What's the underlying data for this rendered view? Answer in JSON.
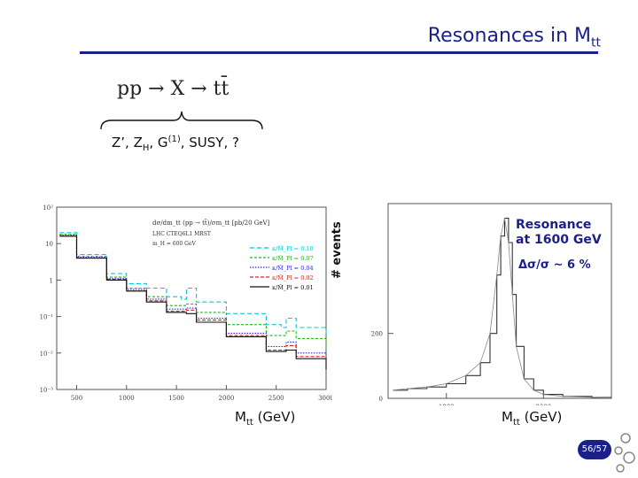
{
  "slide": {
    "title_main": "Resonances in M",
    "title_sub": "tt",
    "equation": "pp → X → tt̄",
    "candidates": {
      "text1": "Z’, Z",
      "sub1": "H",
      "text2": ", G",
      "sup1": "(1)",
      "text3": ", SUSY, ?"
    },
    "resonance_line1": "Resonance",
    "resonance_line2": "at 1600 GeV",
    "resonance_width": "Δσ/σ ~ 6 %",
    "page_number": "56/57",
    "accent_color": "#1a1f8a"
  },
  "chart_data": [
    {
      "type": "line",
      "xlabel_main": "M",
      "xlabel_sub": "tt",
      "xlabel_unit": "(GeV)",
      "y_scale": "log",
      "xlim": [
        300,
        3000
      ],
      "ylim": [
        0.001,
        100
      ],
      "x_ticks": [
        "500",
        "1000",
        "1500",
        "2000",
        "2500",
        "3000"
      ],
      "y_ticks": [
        "10²",
        "10",
        "1",
        "10⁻¹",
        "10⁻²",
        "10⁻³"
      ],
      "header": "dσ/dm_tt (pp → tt̄)/σm_tt   [pb/20 GeV]",
      "header2": "LHC CTEQ6L1 MRST",
      "header3": "m_H = 600 GeV",
      "series": [
        {
          "name": "κ/M̄_Pl = 0.10",
          "color": "#00c8d8",
          "values": [
            [
              330,
              20
            ],
            [
              500,
              5
            ],
            [
              800,
              1.5
            ],
            [
              1000,
              0.8
            ],
            [
              1200,
              0.6
            ],
            [
              1400,
              0.35
            ],
            [
              1550,
              0.3
            ],
            [
              1600,
              0.6
            ],
            [
              1700,
              0.25
            ],
            [
              2000,
              0.12
            ],
            [
              2400,
              0.06
            ],
            [
              2550,
              0.05
            ],
            [
              2600,
              0.09
            ],
            [
              2700,
              0.05
            ],
            [
              3000,
              0.03
            ]
          ]
        },
        {
          "name": "κ/M̄_Pl = 0.07",
          "color": "#1ab81a",
          "values": [
            [
              330,
              18
            ],
            [
              500,
              4.5
            ],
            [
              800,
              1.2
            ],
            [
              1000,
              0.6
            ],
            [
              1200,
              0.35
            ],
            [
              1400,
              0.2
            ],
            [
              1600,
              0.22
            ],
            [
              1700,
              0.13
            ],
            [
              2000,
              0.06
            ],
            [
              2400,
              0.03
            ],
            [
              2600,
              0.04
            ],
            [
              2700,
              0.025
            ],
            [
              3000,
              0.012
            ]
          ]
        },
        {
          "name": "κ/M̄_Pl = 0.04",
          "color": "#2a2ad8",
          "values": [
            [
              330,
              17
            ],
            [
              500,
              4.2
            ],
            [
              800,
              1.1
            ],
            [
              1000,
              0.55
            ],
            [
              1200,
              0.3
            ],
            [
              1400,
              0.16
            ],
            [
              1600,
              0.17
            ],
            [
              1700,
              0.09
            ],
            [
              2000,
              0.035
            ],
            [
              2400,
              0.015
            ],
            [
              2600,
              0.02
            ],
            [
              2700,
              0.01
            ],
            [
              3000,
              0.005
            ]
          ]
        },
        {
          "name": "κ/M̄_Pl = 0.02",
          "color": "#d82020",
          "values": [
            [
              330,
              16
            ],
            [
              500,
              4
            ],
            [
              800,
              1.05
            ],
            [
              1000,
              0.5
            ],
            [
              1200,
              0.27
            ],
            [
              1400,
              0.14
            ],
            [
              1600,
              0.15
            ],
            [
              1700,
              0.08
            ],
            [
              2000,
              0.03
            ],
            [
              2400,
              0.012
            ],
            [
              2600,
              0.016
            ],
            [
              2700,
              0.008
            ],
            [
              3000,
              0.004
            ]
          ]
        },
        {
          "name": "κ/M̄_Pl = 0.01",
          "color": "#111111",
          "values": [
            [
              330,
              16
            ],
            [
              500,
              4
            ],
            [
              800,
              1
            ],
            [
              1000,
              0.5
            ],
            [
              1200,
              0.25
            ],
            [
              1400,
              0.13
            ],
            [
              1600,
              0.12
            ],
            [
              1700,
              0.07
            ],
            [
              2000,
              0.028
            ],
            [
              2400,
              0.011
            ],
            [
              2600,
              0.012
            ],
            [
              2700,
              0.007
            ],
            [
              3000,
              0.0035
            ]
          ]
        }
      ]
    },
    {
      "type": "line",
      "ylabel": "# events",
      "xlabel_main": "M",
      "xlabel_sub": "tt",
      "xlabel_unit": "(GeV)",
      "xlim": [
        400,
        2700
      ],
      "ylim": [
        0,
        600
      ],
      "x_ticks": [
        "1000",
        "2000"
      ],
      "y_ticks": [
        "0",
        "200"
      ],
      "series": [
        {
          "name": "",
          "color": "#333333",
          "values": [
            [
              450,
              25
            ],
            [
              600,
              30
            ],
            [
              800,
              35
            ],
            [
              1000,
              45
            ],
            [
              1200,
              70
            ],
            [
              1350,
              110
            ],
            [
              1450,
              200
            ],
            [
              1520,
              380
            ],
            [
              1560,
              500
            ],
            [
              1600,
              555
            ],
            [
              1640,
              480
            ],
            [
              1680,
              320
            ],
            [
              1720,
              160
            ],
            [
              1800,
              60
            ],
            [
              1900,
              25
            ],
            [
              2000,
              12
            ],
            [
              2200,
              6
            ],
            [
              2500,
              3
            ],
            [
              2700,
              2
            ]
          ]
        }
      ]
    }
  ]
}
